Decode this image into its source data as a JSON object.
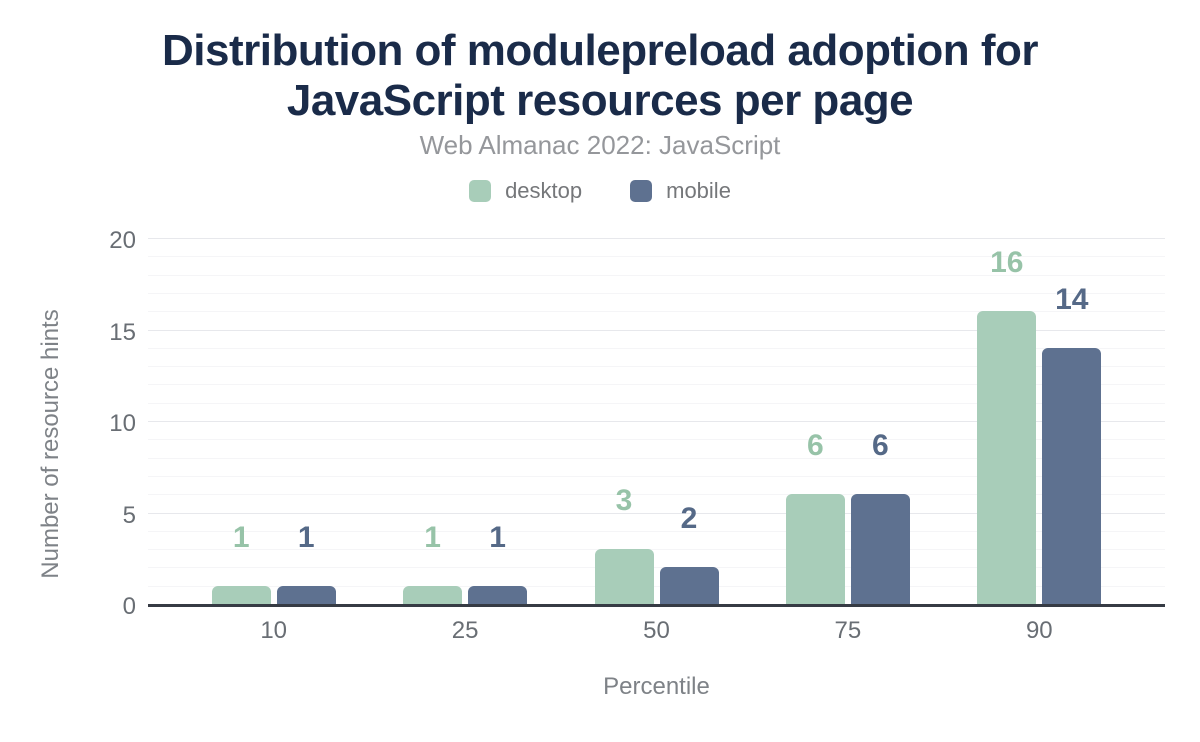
{
  "header": {
    "title_line1": "Distribution of modulepreload adoption for",
    "title_line2": "JavaScript resources per page",
    "subtitle": "Web Almanac 2022: JavaScript"
  },
  "colors": {
    "title_text": "#1a2b49",
    "axis_line": "#363b44",
    "grid_minor": "#f5f5f7",
    "grid_major": "#e7e8ec",
    "tick_text": "#696e74",
    "axis_title_text": "#7e8287"
  },
  "chart_data": {
    "type": "bar",
    "title": "Distribution of modulepreload adoption for JavaScript resources per page",
    "subtitle": "Web Almanac 2022: JavaScript",
    "xlabel": "Percentile",
    "ylabel": "Number of resource hints",
    "categories": [
      "10",
      "25",
      "50",
      "75",
      "90"
    ],
    "series": [
      {
        "name": "desktop",
        "color": "#a8cdb9",
        "label_color": "#97c3a8",
        "values": [
          1,
          1,
          3,
          6,
          16
        ]
      },
      {
        "name": "mobile",
        "color": "#5e7190",
        "label_color": "#556987",
        "values": [
          1,
          1,
          2,
          6,
          14
        ]
      }
    ],
    "ylim": [
      0,
      20
    ],
    "y_ticks": [
      0,
      5,
      10,
      15,
      20
    ],
    "grid": "horizontal, minor every 1 unit, major every 5 units",
    "legend_position": "top",
    "bar_value_labels": true
  }
}
